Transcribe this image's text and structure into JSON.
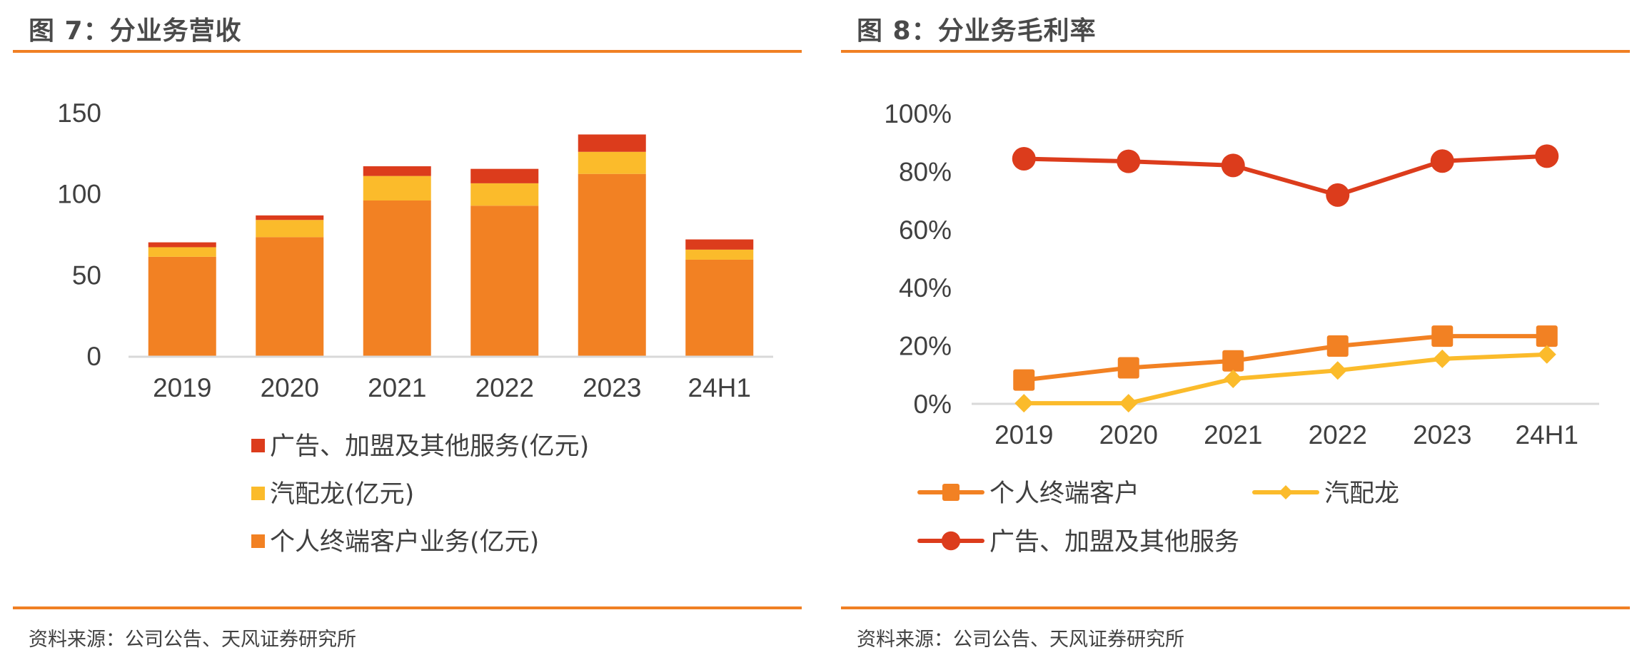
{
  "panels": {
    "left": {
      "title": "图 7：分业务营收",
      "source": "资料来源：公司公告、天风证券研究所"
    },
    "right": {
      "title": "图 8：分业务毛利率",
      "source": "资料来源：公司公告、天风证券研究所"
    }
  },
  "colors": {
    "accent_rule": "#f08024",
    "personal": "#f28123",
    "qipeilong": "#fbbb2b",
    "ads": "#dc3c1c",
    "axis": "#d9d9d9",
    "text": "#404040"
  },
  "chart_data": [
    {
      "type": "bar",
      "stacked": true,
      "title": "图 7：分业务营收",
      "categories": [
        "2019",
        "2020",
        "2021",
        "2022",
        "2023",
        "24H1"
      ],
      "series": [
        {
          "name": "个人终端客户业务(亿元)",
          "color": "#f28123",
          "values": [
            61.2,
            73.3,
            95.9,
            92.7,
            112.3,
            59.4
          ]
        },
        {
          "name": "汽配龙(亿元)",
          "color": "#fbbb2b",
          "values": [
            5.9,
            10.6,
            15.1,
            13.8,
            13.6,
            6.2
          ]
        },
        {
          "name": "广告、加盟及其他服务(亿元)",
          "color": "#dc3c1c",
          "values": [
            3.0,
            2.8,
            6.0,
            8.9,
            10.7,
            6.3
          ]
        }
      ],
      "legend_order": [
        "广告、加盟及其他服务(亿元)",
        "汽配龙(亿元)",
        "个人终端客户业务(亿元)"
      ],
      "xlabel": "",
      "ylabel": "",
      "ylim": [
        0,
        150
      ],
      "yticks": [
        0,
        50,
        100,
        150
      ],
      "ytick_labels": [
        "0",
        "50",
        "100",
        "150"
      ],
      "grid": false,
      "legend_position": "bottom"
    },
    {
      "type": "line",
      "title": "图 8：分业务毛利率",
      "categories": [
        "2019",
        "2020",
        "2021",
        "2022",
        "2023",
        "24H1"
      ],
      "series": [
        {
          "name": "个人终端客户",
          "color": "#f28123",
          "marker": "square",
          "values": [
            8.2,
            12.4,
            14.8,
            19.9,
            23.3,
            23.3
          ]
        },
        {
          "name": "汽配龙",
          "color": "#fbbb2b",
          "marker": "diamond",
          "values": [
            0.2,
            0.2,
            8.6,
            11.5,
            15.5,
            17.0
          ]
        },
        {
          "name": "广告、加盟及其他服务",
          "color": "#dc3c1c",
          "marker": "circle",
          "values": [
            84.4,
            83.5,
            82.1,
            71.9,
            83.6,
            85.3
          ]
        }
      ],
      "unit": "%",
      "xlabel": "",
      "ylabel": "",
      "ylim": [
        0,
        100
      ],
      "yticks": [
        0,
        20,
        40,
        60,
        80,
        100
      ],
      "ytick_labels": [
        "0%",
        "20%",
        "40%",
        "60%",
        "80%",
        "100%"
      ],
      "grid": false,
      "legend_position": "bottom"
    }
  ]
}
